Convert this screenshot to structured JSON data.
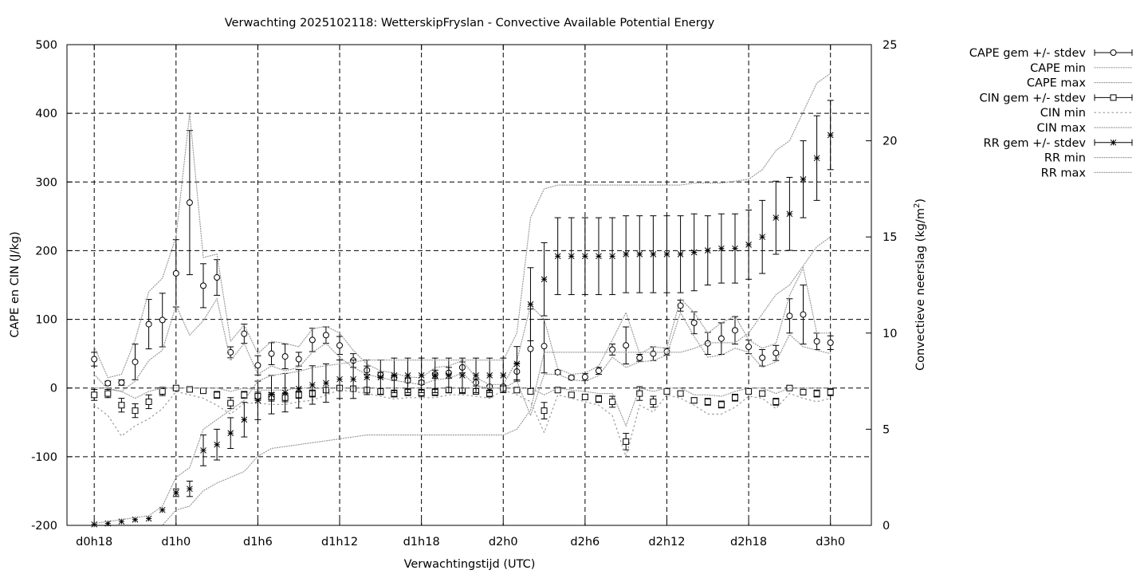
{
  "chart_data": {
    "type": "line",
    "title": "Verwachting 2025102118: WetterskipFryslan - Convective Available Potential Energy",
    "xlabel": "Verwachtingstijd (UTC)",
    "ylabel": "CAPE en CIN (J/kg)",
    "y2label": "Convectieve neerslag (kg/m²)",
    "y2label_main": "Convectieve neerslag (kg/m",
    "y2label_sup": "2",
    "y2label_tail": ")",
    "ylim": [
      -200,
      500
    ],
    "y2lim": [
      0,
      25
    ],
    "xlim_hours": [
      -8,
      51
    ],
    "grid": true,
    "legend_position": "outside-right",
    "x_ticks": [
      {
        "hour": -6,
        "label": "d0h18"
      },
      {
        "hour": 0,
        "label": "d1h0"
      },
      {
        "hour": 6,
        "label": "d1h6"
      },
      {
        "hour": 12,
        "label": "d1h12"
      },
      {
        "hour": 18,
        "label": "d1h18"
      },
      {
        "hour": 24,
        "label": "d2h0"
      },
      {
        "hour": 30,
        "label": "d2h6"
      },
      {
        "hour": 36,
        "label": "d2h12"
      },
      {
        "hour": 42,
        "label": "d2h18"
      },
      {
        "hour": 48,
        "label": "d3h0"
      }
    ],
    "y_ticks": [
      "-200",
      "-100",
      "0",
      "100",
      "200",
      "300",
      "400",
      "500"
    ],
    "y2_ticks": [
      "0",
      "5",
      "10",
      "15",
      "20",
      "25"
    ],
    "legend": [
      {
        "label": "CAPE gem +/- stdev",
        "style": "errorbar",
        "marker": "circle"
      },
      {
        "label": "CAPE min",
        "style": "dotted"
      },
      {
        "label": "CAPE max",
        "style": "dotted"
      },
      {
        "label": "CIN gem +/- stdev",
        "style": "errorbar",
        "marker": "square"
      },
      {
        "label": "CIN min",
        "style": "dotted-sparse"
      },
      {
        "label": "CIN max",
        "style": "dotted"
      },
      {
        "label": "RR gem +/- stdev",
        "style": "errorbar",
        "marker": "star"
      },
      {
        "label": "RR min",
        "style": "dotted"
      },
      {
        "label": "RR max",
        "style": "dotted"
      }
    ],
    "x_hours": [
      -6,
      -5,
      -4,
      -3,
      -2,
      -1,
      0,
      1,
      2,
      3,
      4,
      5,
      6,
      7,
      8,
      9,
      10,
      11,
      12,
      13,
      14,
      15,
      16,
      17,
      18,
      19,
      20,
      21,
      22,
      23,
      24,
      25,
      26,
      27,
      28,
      29,
      30,
      31,
      32,
      33,
      34,
      35,
      36,
      37,
      38,
      39,
      40,
      41,
      42,
      43,
      44,
      45,
      46,
      47,
      48
    ],
    "series": [
      {
        "name": "CAPE gem +/- stdev",
        "axis": "y",
        "values": [
          42,
          7,
          8,
          38,
          93,
          99,
          167,
          270,
          149,
          161,
          52,
          79,
          33,
          50,
          46,
          42,
          70,
          77,
          62,
          40,
          26,
          19,
          15,
          11,
          8,
          20,
          22,
          30,
          8,
          2,
          2,
          24,
          57,
          61,
          23,
          15,
          16,
          25,
          56,
          62,
          44,
          50,
          53,
          120,
          95,
          65,
          72,
          84,
          60,
          44,
          51,
          105,
          107,
          68,
          66
        ],
        "stdev": [
          10,
          3,
          4,
          26,
          36,
          39,
          49,
          105,
          32,
          26,
          8,
          14,
          14,
          16,
          18,
          10,
          17,
          12,
          13,
          10,
          6,
          4,
          4,
          3,
          3,
          6,
          8,
          8,
          5,
          2,
          2,
          12,
          58,
          39,
          3,
          3,
          5,
          5,
          8,
          27,
          5,
          10,
          5,
          8,
          16,
          16,
          23,
          20,
          10,
          12,
          11,
          25,
          43,
          12,
          10
        ]
      },
      {
        "name": "CAPE min",
        "axis": "y",
        "values": [
          20,
          -2,
          -5,
          10,
          40,
          55,
          120,
          77,
          98,
          130,
          40,
          65,
          20,
          32,
          25,
          30,
          52,
          65,
          45,
          30,
          20,
          15,
          11,
          8,
          5,
          12,
          14,
          22,
          3,
          0,
          0,
          10,
          -40,
          20,
          20,
          12,
          10,
          18,
          45,
          30,
          38,
          40,
          48,
          110,
          75,
          45,
          48,
          58,
          52,
          30,
          38,
          78,
          60,
          55,
          50
        ]
      },
      {
        "name": "CAPE max",
        "axis": "y",
        "values": [
          60,
          15,
          20,
          70,
          140,
          160,
          220,
          400,
          190,
          195,
          68,
          92,
          50,
          68,
          65,
          60,
          86,
          90,
          80,
          55,
          35,
          25,
          22,
          16,
          15,
          30,
          32,
          40,
          15,
          5,
          5,
          40,
          120,
          100,
          28,
          20,
          22,
          32,
          70,
          110,
          50,
          60,
          58,
          130,
          110,
          80,
          95,
          105,
          70,
          58,
          65,
          135,
          175,
          80,
          80
        ]
      },
      {
        "name": "CIN gem +/- stdev",
        "axis": "y",
        "values": [
          -10,
          -8,
          -25,
          -33,
          -20,
          -5,
          0,
          -2,
          -4,
          -10,
          -22,
          -10,
          -12,
          -13,
          -14,
          -10,
          -8,
          -3,
          0,
          -1,
          -3,
          -5,
          -8,
          -6,
          -7,
          -6,
          -3,
          -4,
          -5,
          -8,
          -1,
          -3,
          -5,
          -33,
          -3,
          -10,
          -13,
          -16,
          -20,
          -78,
          -8,
          -20,
          -5,
          -8,
          -18,
          -20,
          -24,
          -14,
          -5,
          -8,
          -20,
          0,
          -6,
          -8,
          -6
        ],
        "stdev": [
          8,
          6,
          10,
          10,
          10,
          6,
          1,
          2,
          2,
          5,
          8,
          5,
          6,
          6,
          6,
          5,
          5,
          3,
          1,
          1,
          3,
          4,
          5,
          5,
          5,
          5,
          3,
          4,
          4,
          5,
          1,
          3,
          4,
          12,
          3,
          3,
          4,
          5,
          8,
          12,
          10,
          8,
          3,
          3,
          4,
          5,
          5,
          5,
          3,
          4,
          5,
          2,
          4,
          5,
          5
        ]
      },
      {
        "name": "CIN min",
        "axis": "y",
        "values": [
          -25,
          -40,
          -70,
          -55,
          -45,
          -30,
          -5,
          -10,
          -15,
          -25,
          -38,
          -22,
          -22,
          -24,
          -24,
          -20,
          -18,
          -10,
          -3,
          -5,
          -8,
          -12,
          -16,
          -14,
          -14,
          -14,
          -10,
          -10,
          -12,
          -15,
          -3,
          -10,
          -20,
          -65,
          -10,
          -15,
          -20,
          -25,
          -40,
          -100,
          -25,
          -35,
          -10,
          -15,
          -25,
          -38,
          -38,
          -28,
          -12,
          -15,
          -30,
          -8,
          -15,
          -20,
          -15
        ]
      },
      {
        "name": "CIN max",
        "axis": "y",
        "values": [
          0,
          0,
          -5,
          -15,
          -5,
          0,
          0,
          0,
          0,
          0,
          -5,
          0,
          -3,
          -3,
          -3,
          0,
          0,
          0,
          0,
          0,
          0,
          0,
          0,
          0,
          0,
          0,
          0,
          0,
          0,
          0,
          0,
          0,
          0,
          -10,
          0,
          -3,
          -5,
          -8,
          -8,
          -55,
          0,
          -5,
          0,
          0,
          -10,
          -10,
          -12,
          -5,
          0,
          0,
          -8,
          0,
          0,
          0,
          0
        ]
      },
      {
        "name": "RR gem +/- stdev",
        "axis": "y2",
        "values": [
          0.05,
          0.1,
          0.2,
          0.3,
          0.35,
          0.8,
          1.7,
          1.9,
          3.9,
          4.2,
          4.8,
          5.5,
          6.5,
          6.8,
          6.9,
          7.1,
          7.3,
          7.4,
          7.6,
          7.6,
          7.7,
          7.7,
          7.8,
          7.8,
          7.8,
          7.8,
          7.8,
          7.8,
          7.8,
          7.8,
          7.8,
          8.4,
          11.5,
          12.8,
          14.0,
          14.0,
          14.0,
          14.0,
          14.0,
          14.1,
          14.1,
          14.1,
          14.1,
          14.1,
          14.2,
          14.3,
          14.4,
          14.4,
          14.6,
          15.0,
          16.0,
          16.2,
          18.0,
          19.1,
          20.3
        ],
        "stdev": [
          0,
          0,
          0,
          0,
          0,
          0,
          0.2,
          0.4,
          0.8,
          0.8,
          0.8,
          0.9,
          1.0,
          1.0,
          1.0,
          1.0,
          1.0,
          1.0,
          1.0,
          1.0,
          0.9,
          0.9,
          0.9,
          0.9,
          0.9,
          0.9,
          0.9,
          0.9,
          0.9,
          0.9,
          0.9,
          0.9,
          1.9,
          1.9,
          2.0,
          2.0,
          2.0,
          2.0,
          2.0,
          2.0,
          2.0,
          2.0,
          2.0,
          2.0,
          2.0,
          1.8,
          1.8,
          1.8,
          1.8,
          1.9,
          1.9,
          1.9,
          2.0,
          2.2,
          1.8
        ]
      },
      {
        "name": "RR min",
        "axis": "y2",
        "values": [
          0,
          0,
          0,
          0,
          0,
          0,
          0.8,
          1.0,
          1.8,
          2.2,
          2.5,
          2.8,
          3.6,
          4.0,
          4.1,
          4.2,
          4.3,
          4.4,
          4.5,
          4.6,
          4.7,
          4.7,
          4.7,
          4.7,
          4.7,
          4.7,
          4.7,
          4.7,
          4.7,
          4.7,
          4.7,
          5.0,
          6.0,
          9.0,
          9.0,
          9.0,
          9.0,
          9.0,
          9.0,
          9.0,
          9.0,
          9.0,
          9.0,
          9.0,
          9.2,
          9.5,
          9.5,
          9.5,
          10.0,
          11.0,
          12.0,
          12.5,
          13.5,
          14.5,
          15.0
        ]
      },
      {
        "name": "RR max",
        "axis": "y2",
        "values": [
          0.1,
          0.2,
          0.3,
          0.4,
          0.5,
          1.0,
          2.5,
          3.0,
          5.0,
          5.5,
          6.0,
          6.5,
          7.5,
          7.8,
          7.9,
          8.0,
          8.2,
          8.3,
          8.4,
          8.5,
          8.6,
          8.6,
          8.6,
          8.6,
          8.6,
          8.6,
          8.6,
          8.6,
          8.6,
          8.6,
          8.6,
          10.0,
          16.0,
          17.5,
          17.7,
          17.7,
          17.7,
          17.7,
          17.7,
          17.7,
          17.7,
          17.7,
          17.7,
          17.7,
          17.8,
          17.8,
          17.8,
          17.9,
          18.0,
          18.5,
          19.5,
          20.0,
          21.5,
          23.0,
          23.5
        ]
      }
    ]
  }
}
